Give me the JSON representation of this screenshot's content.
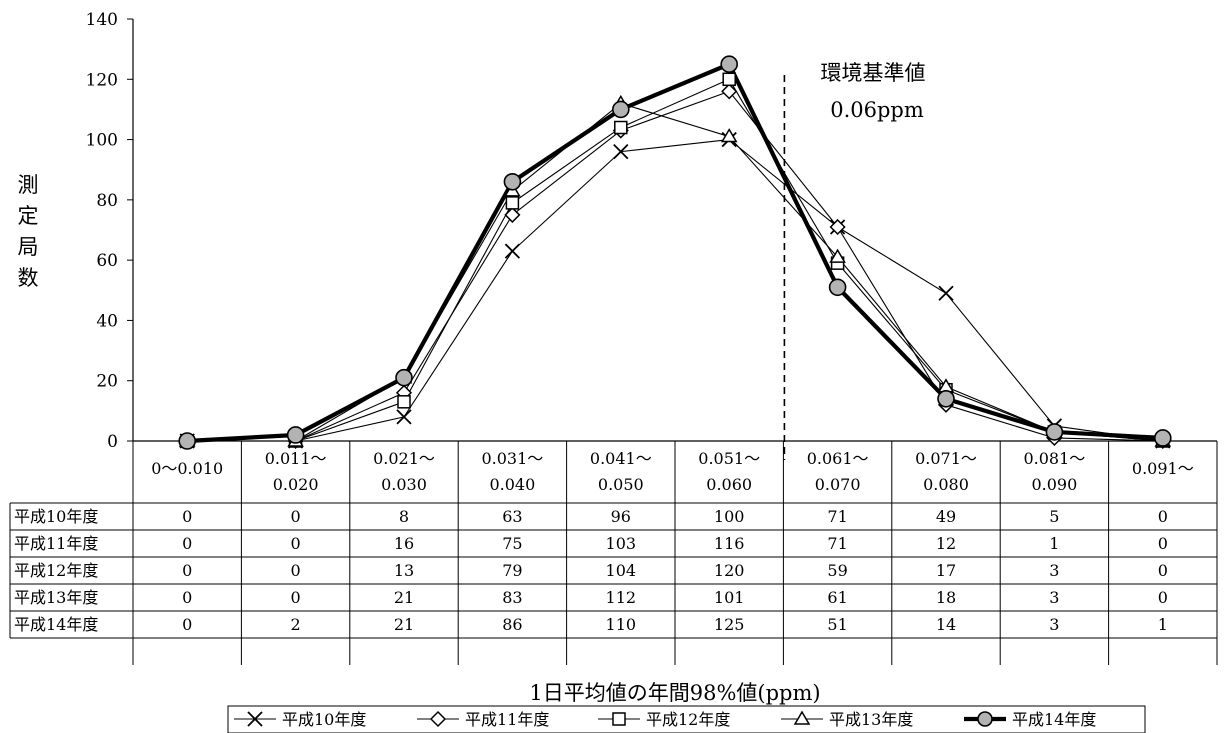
{
  "chart_data": {
    "type": "line",
    "ylabel": "測定局数",
    "xlabel": "1日平均値の年間98%値(ppm)",
    "ylim": [
      0,
      140
    ],
    "yticks": [
      0,
      20,
      40,
      60,
      80,
      100,
      120,
      140
    ],
    "categories": [
      [
        "0～0.010"
      ],
      [
        "0.011～",
        "0.020"
      ],
      [
        "0.021～",
        "0.030"
      ],
      [
        "0.031～",
        "0.040"
      ],
      [
        "0.041～",
        "0.050"
      ],
      [
        "0.051～",
        "0.060"
      ],
      [
        "0.061～",
        "0.070"
      ],
      [
        "0.071～",
        "0.080"
      ],
      [
        "0.081～",
        "0.090"
      ],
      [
        "0.091～"
      ]
    ],
    "series": [
      {
        "name": "平成10年度",
        "marker": "x",
        "values": [
          0,
          0,
          8,
          63,
          96,
          100,
          71,
          49,
          5,
          0
        ]
      },
      {
        "name": "平成11年度",
        "marker": "diamond",
        "values": [
          0,
          0,
          16,
          75,
          103,
          116,
          71,
          12,
          1,
          0
        ]
      },
      {
        "name": "平成12年度",
        "marker": "square",
        "values": [
          0,
          0,
          13,
          79,
          104,
          120,
          59,
          17,
          3,
          0
        ]
      },
      {
        "name": "平成13年度",
        "marker": "triangle",
        "values": [
          0,
          0,
          21,
          83,
          112,
          101,
          61,
          18,
          3,
          0
        ]
      },
      {
        "name": "平成14年度",
        "marker": "circle",
        "values": [
          0,
          2,
          21,
          86,
          110,
          125,
          51,
          14,
          3,
          1
        ]
      }
    ],
    "annotation": {
      "line1": "環境基準値",
      "line2": "0.06ppm",
      "at_value": "0.06ppm"
    },
    "legend_position": "bottom",
    "grid": false,
    "colors": {
      "line": "#000000",
      "circle_fill": "#b3b3b3"
    }
  }
}
